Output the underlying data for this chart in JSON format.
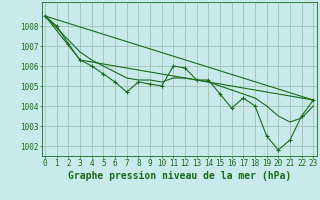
{
  "x": [
    0,
    1,
    2,
    3,
    4,
    5,
    6,
    7,
    8,
    9,
    10,
    11,
    12,
    13,
    14,
    15,
    16,
    17,
    18,
    19,
    20,
    21,
    22,
    23
  ],
  "main": [
    1008.5,
    1008.0,
    1007.1,
    1006.3,
    1006.0,
    1005.6,
    1005.2,
    1004.7,
    1005.2,
    1005.1,
    1005.0,
    1006.0,
    1005.9,
    1005.3,
    1005.3,
    1004.6,
    1003.9,
    1004.4,
    1004.0,
    1002.5,
    1001.8,
    1002.3,
    1003.5,
    1004.3
  ],
  "smooth": [
    1008.5,
    1007.9,
    1007.3,
    1006.7,
    1006.3,
    1006.0,
    1005.7,
    1005.4,
    1005.3,
    1005.3,
    1005.2,
    1005.4,
    1005.4,
    1005.3,
    1005.2,
    1005.0,
    1004.8,
    1004.6,
    1004.4,
    1004.0,
    1003.5,
    1003.2,
    1003.4,
    1004.0
  ],
  "trend1_x": [
    0,
    3,
    23
  ],
  "trend1_y": [
    1008.5,
    1006.3,
    1004.3
  ],
  "trend2_x": [
    0,
    23
  ],
  "trend2_y": [
    1008.5,
    1004.3
  ],
  "bg_color": "#c8eaea",
  "line_color": "#1a6b1a",
  "grid_color": "#99bbaa",
  "xlabel": "Graphe pression niveau de la mer (hPa)",
  "ylim": [
    1001.5,
    1009.2
  ],
  "yticks": [
    1002,
    1003,
    1004,
    1005,
    1006,
    1007,
    1008
  ],
  "xticks": [
    0,
    1,
    2,
    3,
    4,
    5,
    6,
    7,
    8,
    9,
    10,
    11,
    12,
    13,
    14,
    15,
    16,
    17,
    18,
    19,
    20,
    21,
    22,
    23
  ],
  "tick_fontsize": 5.5,
  "xlabel_fontsize": 7.0
}
